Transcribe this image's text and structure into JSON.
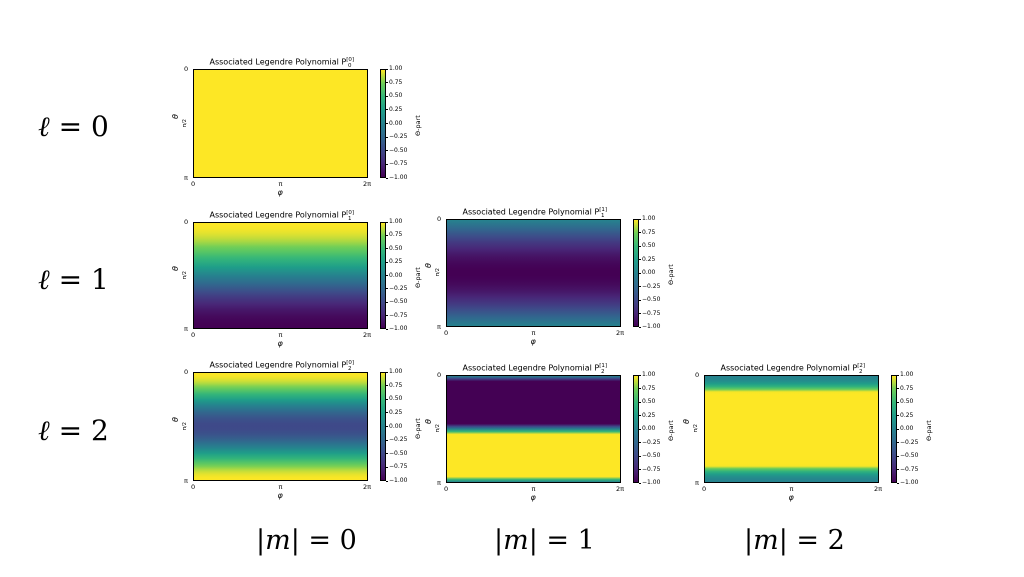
{
  "row_labels": [
    {
      "symbol": "ℓ",
      "equals": "=",
      "value": "0"
    },
    {
      "symbol": "ℓ",
      "equals": "=",
      "value": "1"
    },
    {
      "symbol": "ℓ",
      "equals": "=",
      "value": "2"
    }
  ],
  "col_labels": [
    {
      "left": "|",
      "symbol": "m",
      "right": "|",
      "equals": "=",
      "value": "0"
    },
    {
      "left": "|",
      "symbol": "m",
      "right": "|",
      "equals": "=",
      "value": "1"
    },
    {
      "left": "|",
      "symbol": "m",
      "right": "|",
      "equals": "=",
      "value": "2"
    }
  ],
  "colors": {
    "min": "#440154",
    "mid": "#26828e",
    "max": "#fde725"
  },
  "chart_data": [
    {
      "type": "heatmap",
      "title_prefix": "Associated Legendre Polynomial P",
      "l": "0",
      "m": "0",
      "xlabel": "φ",
      "ylabel": "θ",
      "xticks": [
        "0",
        "π",
        "2π"
      ],
      "yticks": [
        "0",
        "π/2",
        "π"
      ],
      "colorbar_label": "Θ-part",
      "colorbar_ticks": [
        "1.00",
        "0.75",
        "0.50",
        "0.25",
        "0.00",
        "−0.25",
        "−0.50",
        "−0.75",
        "−1.00"
      ],
      "clim": [
        -1,
        1
      ],
      "profile": "P00"
    },
    {
      "type": "heatmap",
      "title_prefix": "Associated Legendre Polynomial P",
      "l": "1",
      "m": "0",
      "xlabel": "φ",
      "ylabel": "θ",
      "xticks": [
        "0",
        "π",
        "2π"
      ],
      "yticks": [
        "0",
        "π/2",
        "π"
      ],
      "colorbar_label": "Θ-part",
      "colorbar_ticks": [
        "1.00",
        "0.75",
        "0.50",
        "0.25",
        "0.00",
        "−0.25",
        "−0.50",
        "−0.75",
        "−1.00"
      ],
      "clim": [
        -1,
        1
      ],
      "profile": "P10"
    },
    {
      "type": "heatmap",
      "title_prefix": "Associated Legendre Polynomial P",
      "l": "1",
      "m": "1",
      "xlabel": "φ",
      "ylabel": "θ",
      "xticks": [
        "0",
        "π",
        "2π"
      ],
      "yticks": [
        "0",
        "π/2",
        "π"
      ],
      "colorbar_label": "Θ-part",
      "colorbar_ticks": [
        "1.00",
        "0.75",
        "0.50",
        "0.25",
        "0.00",
        "−0.25",
        "−0.50",
        "−0.75",
        "−1.00"
      ],
      "clim": [
        -1,
        1
      ],
      "profile": "P11"
    },
    {
      "type": "heatmap",
      "title_prefix": "Associated Legendre Polynomial P",
      "l": "2",
      "m": "0",
      "xlabel": "φ",
      "ylabel": "θ",
      "xticks": [
        "0",
        "π",
        "2π"
      ],
      "yticks": [
        "0",
        "π/2",
        "π"
      ],
      "colorbar_label": "Θ-part",
      "colorbar_ticks": [
        "1.00",
        "0.75",
        "0.50",
        "0.25",
        "0.00",
        "−0.25",
        "−0.50",
        "−0.75",
        "−1.00"
      ],
      "clim": [
        -1,
        1
      ],
      "profile": "P20"
    },
    {
      "type": "heatmap",
      "title_prefix": "Associated Legendre Polynomial P",
      "l": "2",
      "m": "1",
      "xlabel": "φ",
      "ylabel": "θ",
      "xticks": [
        "0",
        "π",
        "2π"
      ],
      "yticks": [
        "0",
        "π/2",
        "π"
      ],
      "colorbar_label": "Θ-part",
      "colorbar_ticks": [
        "1.00",
        "0.75",
        "0.50",
        "0.25",
        "0.00",
        "−0.25",
        "−0.50",
        "−0.75",
        "−1.00"
      ],
      "clim": [
        -1,
        1
      ],
      "profile": "P21"
    },
    {
      "type": "heatmap",
      "title_prefix": "Associated Legendre Polynomial P",
      "l": "2",
      "m": "2",
      "xlabel": "φ",
      "ylabel": "θ",
      "xticks": [
        "0",
        "π",
        "2π"
      ],
      "yticks": [
        "0",
        "π/2",
        "π"
      ],
      "colorbar_label": "Θ-part",
      "colorbar_ticks": [
        "1.00",
        "0.75",
        "0.50",
        "0.25",
        "0.00",
        "−0.25",
        "−0.50",
        "−0.75",
        "−1.00"
      ],
      "clim": [
        -1,
        1
      ],
      "profile": "P22"
    }
  ]
}
